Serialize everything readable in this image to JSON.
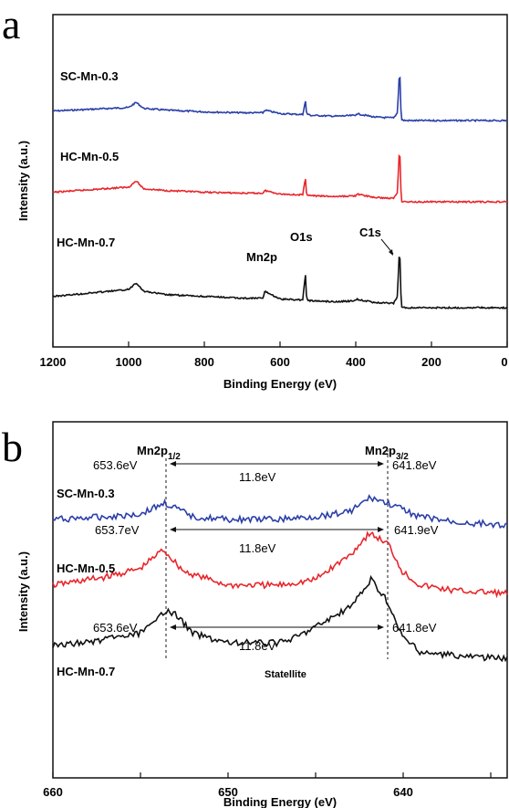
{
  "panel_a": {
    "letter": "a",
    "ylabel": "Intensity (a.u.)",
    "xlabel": "Binding Energy (eV)",
    "xticks": [
      "1200",
      "1000",
      "800",
      "600",
      "400",
      "200",
      "0"
    ],
    "series_labels": [
      "SC-Mn-0.3",
      "HC-Mn-0.5",
      "HC-Mn-0.7"
    ],
    "annotations": [
      "Mn2p",
      "O1s",
      "C1s"
    ]
  },
  "panel_b": {
    "letter": "b",
    "ylabel": "Intensity (a.u.)",
    "xlabel": "Binding Energy (eV)",
    "xticks": [
      "660",
      "650",
      "640"
    ],
    "series_labels": [
      "SC-Mn-0.3",
      "HC-Mn-0.5",
      "HC-Mn-0.7"
    ],
    "peak_names": {
      "p12_base": "Mn2p",
      "p12_sub": "1/2",
      "p32_base": "Mn2p",
      "p32_sub": "3/2"
    },
    "value_labels": [
      {
        "left": "653.6eV",
        "delta": "11.8eV",
        "right": "641.8eV"
      },
      {
        "left": "653.7eV",
        "delta": "11.8eV",
        "right": "641.9eV"
      },
      {
        "left": "653.6eV",
        "delta": "11.8eV",
        "right": "641.8eV"
      }
    ],
    "satellite_label": "Statellite"
  },
  "colors": {
    "blue": "#2b3fa8",
    "red": "#e8262b",
    "black": "#111111"
  },
  "chart_data": [
    {
      "type": "line",
      "title": "",
      "xlabel": "Binding Energy (eV)",
      "ylabel": "Intensity (a.u.)",
      "xlim": [
        1200,
        0
      ],
      "x_reversed": true,
      "y_units": "arbitrary (stacked, offset)",
      "series": [
        {
          "name": "SC-Mn-0.3",
          "color": "#2b3fa8",
          "x": [
            1200,
            1100,
            1000,
            980,
            960,
            900,
            800,
            700,
            645,
            640,
            600,
            540,
            533,
            530,
            520,
            450,
            400,
            399,
            350,
            300,
            290,
            285,
            284,
            280,
            270,
            200,
            100,
            0
          ],
          "y": [
            12,
            14,
            16,
            22,
            15,
            13,
            11,
            10,
            10,
            13,
            9,
            8,
            24,
            9,
            7,
            6,
            7,
            9,
            5,
            4,
            10,
            55,
            62,
            2,
            1,
            1,
            1,
            1
          ]
        },
        {
          "name": "HC-Mn-0.5",
          "color": "#e8262b",
          "x": [
            1200,
            1100,
            1000,
            980,
            960,
            900,
            800,
            700,
            645,
            640,
            600,
            540,
            533,
            530,
            520,
            450,
            400,
            399,
            350,
            300,
            290,
            285,
            284,
            280,
            270,
            200,
            100,
            0
          ],
          "y": [
            12,
            15,
            18,
            25,
            16,
            14,
            12,
            11,
            11,
            14,
            10,
            9,
            28,
            10,
            8,
            7,
            8,
            10,
            6,
            5,
            12,
            60,
            66,
            2,
            1,
            1,
            1,
            1
          ]
        },
        {
          "name": "HC-Mn-0.7",
          "color": "#111111",
          "x": [
            1200,
            1100,
            1000,
            980,
            960,
            900,
            800,
            700,
            645,
            640,
            600,
            540,
            533,
            530,
            520,
            450,
            400,
            399,
            350,
            300,
            290,
            285,
            284,
            280,
            270,
            200,
            100,
            0
          ],
          "y": [
            14,
            18,
            22,
            30,
            20,
            16,
            14,
            12,
            12,
            20,
            11,
            10,
            40,
            11,
            9,
            8,
            9,
            11,
            7,
            6,
            14,
            66,
            72,
            2,
            1,
            1,
            1,
            1
          ]
        }
      ]
    },
    {
      "type": "line",
      "title": "",
      "xlabel": "Binding Energy (eV)",
      "ylabel": "Intensity (a.u.)",
      "xlim": [
        660,
        634
      ],
      "x_reversed": true,
      "y_units": "arbitrary (stacked, offset)",
      "peaks": [
        {
          "series": "SC-Mn-0.3",
          "mn2p_1_2": 653.6,
          "mn2p_3_2": 641.8,
          "splitting": 11.8
        },
        {
          "series": "HC-Mn-0.5",
          "mn2p_1_2": 653.7,
          "mn2p_3_2": 641.9,
          "splitting": 11.8
        },
        {
          "series": "HC-Mn-0.7",
          "mn2p_1_2": 653.6,
          "mn2p_3_2": 641.8,
          "splitting": 11.8
        }
      ],
      "series": [
        {
          "name": "SC-Mn-0.3",
          "color": "#2b3fa8",
          "x": [
            660,
            657,
            655,
            653.6,
            652,
            650,
            647,
            645,
            643,
            641.8,
            640.5,
            639,
            637,
            634
          ],
          "y": [
            2,
            3,
            4,
            8,
            3,
            2,
            2,
            3,
            5,
            10,
            7,
            3,
            1,
            0
          ]
        },
        {
          "name": "HC-Mn-0.5",
          "color": "#e8262b",
          "x": [
            660,
            657,
            655,
            653.7,
            652.5,
            650,
            647,
            645,
            643,
            641.9,
            640.8,
            640,
            639,
            637,
            634
          ],
          "y": [
            3,
            6,
            9,
            16,
            8,
            3,
            3,
            5,
            14,
            22,
            18,
            8,
            3,
            1,
            0
          ]
        },
        {
          "name": "HC-Mn-0.7",
          "color": "#111111",
          "x": [
            660,
            657,
            655,
            654,
            653.6,
            653,
            652,
            650,
            647,
            646,
            645,
            643,
            642,
            641.8,
            641,
            640,
            639,
            637,
            634
          ],
          "y": [
            5,
            7,
            9,
            13,
            16,
            15,
            9,
            6,
            6,
            8,
            11,
            17,
            24,
            26,
            20,
            8,
            3,
            2,
            1
          ]
        }
      ]
    }
  ]
}
